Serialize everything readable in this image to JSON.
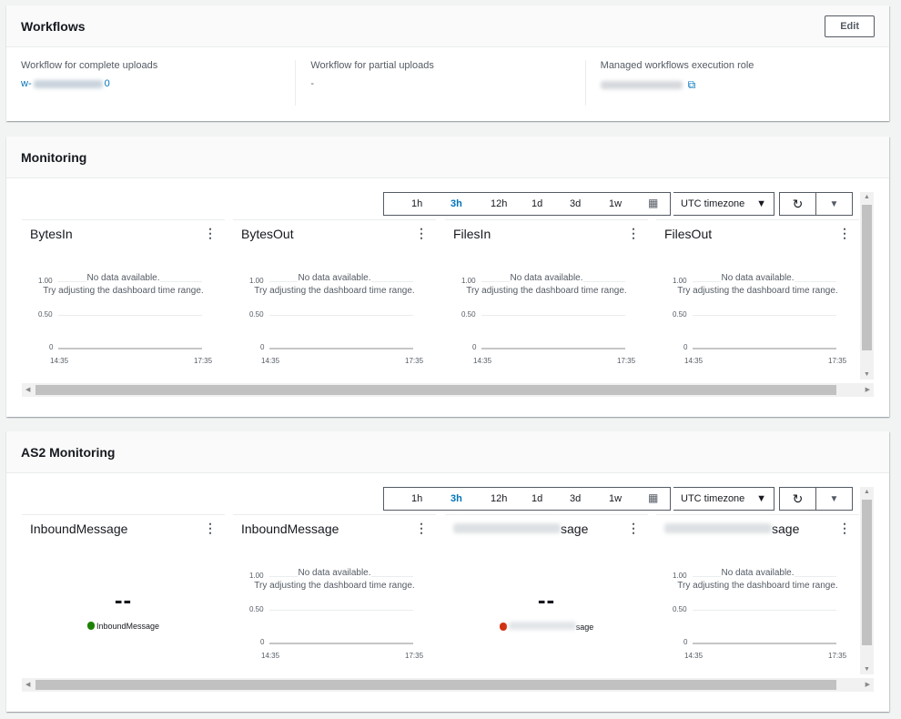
{
  "workflows": {
    "title": "Workflows",
    "edit_label": "Edit",
    "complete": {
      "label": "Workflow for complete uploads",
      "value_prefix": "w-",
      "value_suffix": "0"
    },
    "partial": {
      "label": "Workflow for partial uploads",
      "value": "-"
    },
    "role": {
      "label": "Managed workflows execution role",
      "icon": "external-link-icon"
    }
  },
  "toolbar": {
    "ranges": [
      "1h",
      "3h",
      "12h",
      "1d",
      "3d",
      "1w"
    ],
    "selected": "3h",
    "timezone": "UTC timezone",
    "refresh_icon": "refresh-icon",
    "calendar_icon": "calendar-icon"
  },
  "chart_common": {
    "y_ticks": [
      "1.00",
      "0.50",
      "0"
    ],
    "x_ticks": [
      "14:35",
      "17:35"
    ],
    "no_data": "No data available.",
    "hint": "Try adjusting the dashboard time range."
  },
  "monitoring": {
    "title": "Monitoring",
    "widgets": [
      {
        "title": "BytesIn",
        "kind": "chart"
      },
      {
        "title": "BytesOut",
        "kind": "chart"
      },
      {
        "title": "FilesIn",
        "kind": "chart"
      },
      {
        "title": "FilesOut",
        "kind": "chart"
      }
    ]
  },
  "as2": {
    "title": "AS2 Monitoring",
    "widgets": [
      {
        "title": "InboundMessage",
        "kind": "value",
        "value": "--",
        "legend": "InboundMessage",
        "color": "#1d8102"
      },
      {
        "title": "InboundMessage",
        "kind": "chart"
      },
      {
        "title": "sage",
        "title_blurred": true,
        "kind": "value",
        "value": "--",
        "legend": "sage",
        "legend_blurred": true,
        "color": "#d13212"
      },
      {
        "title": "sage",
        "title_blurred": true,
        "kind": "chart"
      }
    ]
  },
  "colors": {
    "link": "#0073bb",
    "selected_range": "#0073bb"
  }
}
